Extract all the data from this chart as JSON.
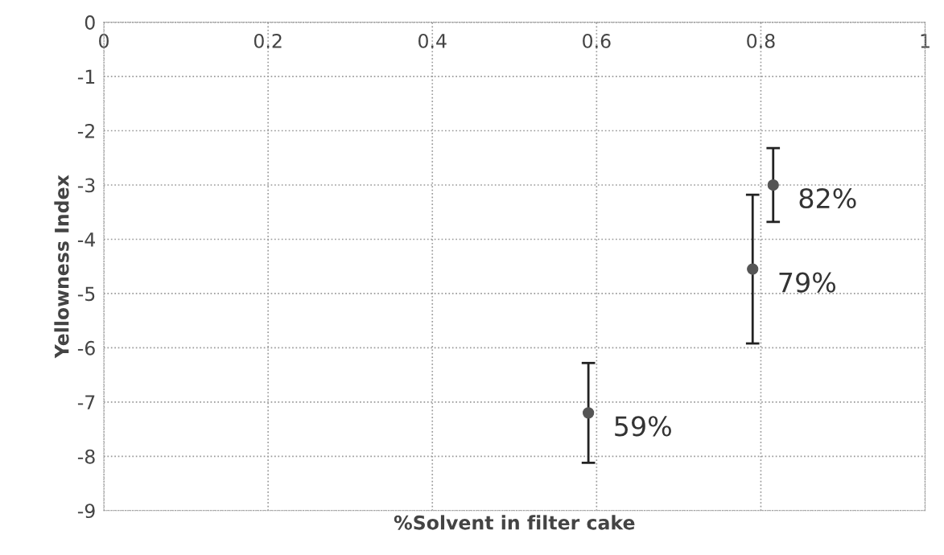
{
  "chart_data": {
    "type": "scatter",
    "xlabel": "%Solvent in filter cake",
    "ylabel": "Yellowness Index",
    "x": [
      0.59,
      0.79,
      0.815
    ],
    "series": [
      {
        "color": "#555555",
        "values": [
          -7.2,
          -4.55,
          -3.0
        ],
        "errors": [
          0.92,
          1.37,
          0.68
        ]
      }
    ],
    "annotations": [
      {
        "text": "59%",
        "x": 0.59,
        "y": -7.2
      },
      {
        "text": "79%",
        "x": 0.79,
        "y": -4.55
      },
      {
        "text": "82%",
        "x": 0.815,
        "y": -3.0
      }
    ],
    "xlim": [
      0,
      1
    ],
    "xticks": [
      0,
      0.2,
      0.4,
      0.6,
      0.8,
      1
    ],
    "ylim": [
      -9,
      0
    ],
    "yticks": [
      -9,
      -8,
      -7,
      -6,
      -5,
      -4,
      -3,
      -2,
      -1,
      0
    ],
    "grid": true,
    "marker": "circle"
  }
}
